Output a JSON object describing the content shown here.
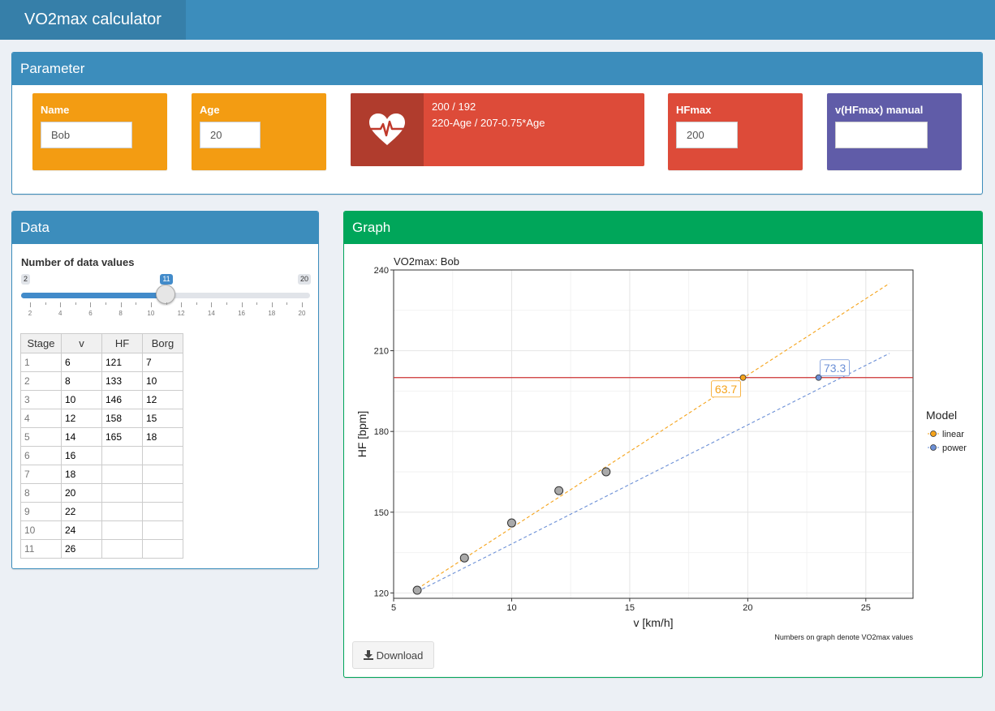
{
  "app": {
    "title": "VO2max calculator"
  },
  "parameter": {
    "header": "Parameter",
    "name": {
      "label": "Name",
      "value": "Bob",
      "color": "#f39c12"
    },
    "age": {
      "label": "Age",
      "value": "20",
      "color": "#f39c12"
    },
    "info": {
      "line1": "200 / 192",
      "line2": "220-Age / 207-0.75*Age",
      "icon": "heart-pulse-icon",
      "color": "#dd4b39"
    },
    "hfmax": {
      "label": "HFmax",
      "value": "200",
      "color": "#dd4b39"
    },
    "vhfmax": {
      "label": "v(HFmax) manual",
      "value": "",
      "color": "#605ca8"
    }
  },
  "data": {
    "header": "Data",
    "slider": {
      "label": "Number of data values",
      "min": "2",
      "max": "20",
      "value": "11",
      "ticks": [
        "2",
        "4",
        "6",
        "8",
        "10",
        "12",
        "14",
        "16",
        "18",
        "20"
      ]
    },
    "table": {
      "columns": [
        "Stage",
        "v",
        "HF",
        "Borg"
      ],
      "rows": [
        [
          "1",
          "6",
          "121",
          "7"
        ],
        [
          "2",
          "8",
          "133",
          "10"
        ],
        [
          "3",
          "10",
          "146",
          "12"
        ],
        [
          "4",
          "12",
          "158",
          "15"
        ],
        [
          "5",
          "14",
          "165",
          "18"
        ],
        [
          "6",
          "16",
          "",
          ""
        ],
        [
          "7",
          "18",
          "",
          ""
        ],
        [
          "8",
          "20",
          "",
          ""
        ],
        [
          "9",
          "22",
          "",
          ""
        ],
        [
          "10",
          "24",
          "",
          ""
        ],
        [
          "11",
          "26",
          "",
          ""
        ]
      ]
    }
  },
  "graph": {
    "header": "Graph",
    "download_label": "Download",
    "caption": "Numbers on graph denote VO2max values"
  },
  "chart_data": {
    "type": "scatter",
    "title": "VO2max: Bob",
    "xlabel": "v [km/h]",
    "ylabel": "HF [bpm]",
    "xlim": [
      5,
      27
    ],
    "ylim": [
      118,
      240
    ],
    "xticks": [
      5,
      10,
      15,
      20,
      25
    ],
    "yticks": [
      120,
      150,
      180,
      210,
      240
    ],
    "grid": true,
    "points": [
      {
        "x": 6,
        "y": 121
      },
      {
        "x": 8,
        "y": 133
      },
      {
        "x": 10,
        "y": 146
      },
      {
        "x": 12,
        "y": 158
      },
      {
        "x": 14,
        "y": 165
      }
    ],
    "hline": {
      "y": 200,
      "color": "#cc3333"
    },
    "legend": {
      "title": "Model",
      "position": "right"
    },
    "series": [
      {
        "name": "linear",
        "color": "#f5a31a",
        "line": [
          [
            6,
            121.5
          ],
          [
            26,
            235
          ]
        ],
        "point": {
          "x": 19.8,
          "y": 200
        },
        "label": "63.7"
      },
      {
        "name": "power",
        "color": "#6b8fd6",
        "line": [
          [
            6,
            120.5
          ],
          [
            26,
            209
          ]
        ],
        "point": {
          "x": 23.0,
          "y": 200
        },
        "label": "73.3"
      }
    ]
  }
}
